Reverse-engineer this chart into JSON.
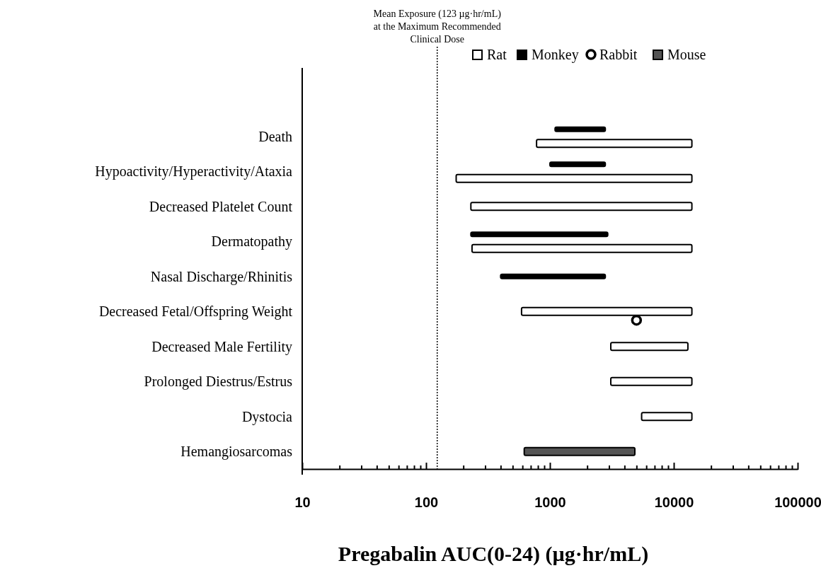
{
  "chart_data": {
    "type": "bar",
    "orientation": "horizontal",
    "log": "x",
    "xlabel": "Pregabalin AUC(0-24) (µg·hr/mL)",
    "categories": [
      "Death",
      "Hypoactivity/Hyperactivity/Ataxia",
      "Decreased Platelet Count",
      "Dermatopathy",
      "Nasal Discharge/Rhinitis",
      "Decreased Fetal/Offspring Weight",
      "Decreased Male Fertility",
      "Prolonged Diestrus/Estrus",
      "Dystocia",
      "Hemangiosarcomas"
    ],
    "series": [
      {
        "name": "Rat",
        "color": "#ffffff",
        "base": [
          780,
          175,
          230,
          235,
          null,
          590,
          3100,
          3100,
          5500,
          null
        ],
        "values": [
          13220,
          13825,
          13770,
          13765,
          null,
          13410,
          9900,
          10900,
          8500,
          null
        ]
      },
      {
        "name": "Monkey",
        "color": "#000000",
        "base": [
          1100,
          1000,
          null,
          230,
          400,
          null,
          null,
          null,
          null,
          null
        ],
        "values": [
          1700,
          1800,
          null,
          2700,
          2400,
          null,
          null,
          null,
          null,
          null
        ]
      },
      {
        "name": "Rabbit",
        "type": "scatter",
        "marker": "circle",
        "color": "#ffffff",
        "values": [
          null,
          null,
          null,
          null,
          null,
          5000,
          null,
          null,
          null,
          null
        ]
      },
      {
        "name": "Mouse",
        "color": "#555555",
        "base": [
          null,
          null,
          null,
          null,
          null,
          null,
          null,
          null,
          null,
          620
        ],
        "values": [
          null,
          null,
          null,
          null,
          null,
          null,
          null,
          null,
          null,
          4230
        ]
      }
    ],
    "xlim": [
      10,
      100000
    ],
    "xticks": [
      10,
      {
        "value": 20,
        "label": null
      },
      {
        "value": 30,
        "label": null
      },
      {
        "value": 40,
        "label": null
      },
      {
        "value": 50,
        "label": null
      },
      {
        "value": 60,
        "label": null
      },
      {
        "value": 70,
        "label": null
      },
      {
        "value": 80,
        "label": null
      },
      {
        "value": 90,
        "label": null
      },
      100,
      {
        "value": 200,
        "label": null
      },
      {
        "value": 300,
        "label": null
      },
      {
        "value": 400,
        "label": null
      },
      {
        "value": 500,
        "label": null
      },
      {
        "value": 600,
        "label": null
      },
      {
        "value": 700,
        "label": null
      },
      {
        "value": 800,
        "label": null
      },
      {
        "value": 900,
        "label": null
      },
      1000,
      {
        "value": 2000,
        "label": null
      },
      {
        "value": 3000,
        "label": null
      },
      {
        "value": 4000,
        "label": null
      },
      {
        "value": 5000,
        "label": null
      },
      {
        "value": 6000,
        "label": null
      },
      {
        "value": 7000,
        "label": null
      },
      {
        "value": 8000,
        "label": null
      },
      {
        "value": 9000,
        "label": null
      },
      10000,
      {
        "value": 20000,
        "label": null
      },
      {
        "value": 30000,
        "label": null
      },
      {
        "value": 40000,
        "label": null
      },
      {
        "value": 50000,
        "label": null
      },
      {
        "value": 60000,
        "label": null
      },
      {
        "value": 70000,
        "label": null
      },
      {
        "value": 80000,
        "label": null
      },
      {
        "value": 90000,
        "label": null
      },
      100000
    ],
    "ref_lines": [
      {
        "axis": "x",
        "value": 123,
        "label": "Mean Exposure (123 µg·hr/mL)\nat the Maximum Recommended\nClinical Dose",
        "line_style": "dotted",
        "color": "#000000"
      }
    ],
    "legend": "top right",
    "grid": false
  }
}
